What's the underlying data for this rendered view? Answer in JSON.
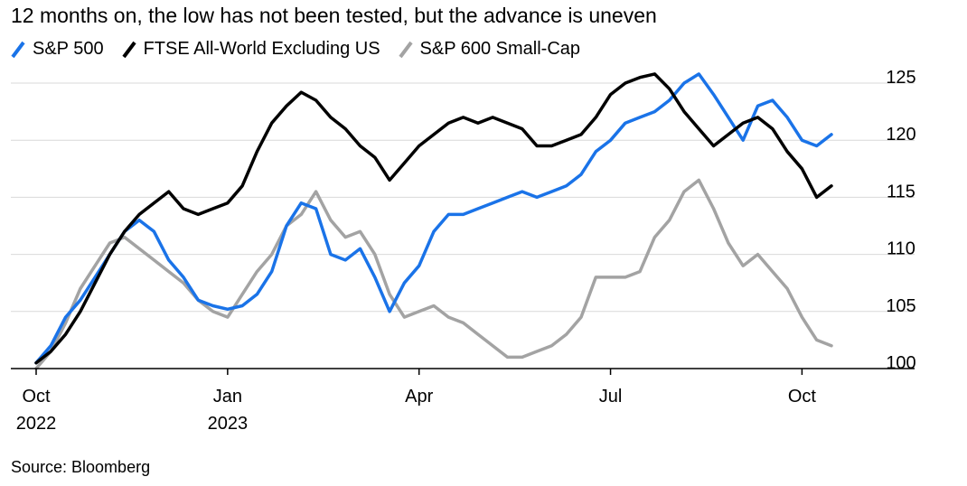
{
  "title": "12 months on, the low has not been tested, but the advance is uneven",
  "source": "Source: Bloomberg",
  "colors": {
    "sp500": "#1a73e8",
    "ftse": "#000000",
    "sp600": "#a3a3a3",
    "grid": "#d9d9d9",
    "axis": "#000000"
  },
  "chart_data": {
    "type": "line",
    "title": "12 months on, the low has not been tested, but the advance is uneven",
    "xlabel": "",
    "ylabel": "",
    "ylim": [
      100,
      125
    ],
    "yticks": [
      100,
      105,
      110,
      115,
      120,
      125
    ],
    "ytick_labels": [
      "100",
      "105",
      "110",
      "115",
      "120",
      "125"
    ],
    "grid": true,
    "y_axis_position": "right",
    "legend_position": "top-left",
    "x_domain": [
      0,
      54
    ],
    "xticks": [
      {
        "x": 0,
        "label": "Oct",
        "sublabel": "2022"
      },
      {
        "x": 13,
        "label": "Jan",
        "sublabel": "2023"
      },
      {
        "x": 26,
        "label": "Apr",
        "sublabel": ""
      },
      {
        "x": 39,
        "label": "Jul",
        "sublabel": ""
      },
      {
        "x": 52,
        "label": "Oct",
        "sublabel": ""
      }
    ],
    "x_unit": "weeks since start of Oct 2022",
    "series": [
      {
        "key": "sp500",
        "name": "S&P 500",
        "x": [
          0,
          1,
          2,
          3,
          4,
          5,
          6,
          7,
          8,
          9,
          10,
          11,
          12,
          13,
          14,
          15,
          16,
          17,
          18,
          19,
          20,
          21,
          22,
          23,
          24,
          25,
          26,
          27,
          28,
          29,
          30,
          31,
          32,
          33,
          34,
          35,
          36,
          37,
          38,
          39,
          40,
          41,
          42,
          43,
          44,
          45,
          46,
          47,
          48,
          49,
          50,
          51,
          52,
          53,
          54
        ],
        "values": [
          100.5,
          102,
          104.5,
          106,
          108,
          110,
          112,
          113,
          112,
          109.5,
          108,
          106,
          105.5,
          105.2,
          105.5,
          106.5,
          108.5,
          112.5,
          114.5,
          114,
          110,
          109.5,
          110.5,
          108,
          105,
          107.5,
          109,
          112,
          113.5,
          113.5,
          114,
          114.5,
          115,
          115.5,
          115,
          115.5,
          116,
          117,
          119,
          120,
          121.5,
          122,
          122.5,
          123.5,
          125,
          125.8,
          124,
          122,
          120,
          123,
          123.5,
          122,
          120,
          119.5,
          120.5
        ]
      },
      {
        "key": "ftse",
        "name": "FTSE All-World Excluding US",
        "x": [
          0,
          1,
          2,
          3,
          4,
          5,
          6,
          7,
          8,
          9,
          10,
          11,
          12,
          13,
          14,
          15,
          16,
          17,
          18,
          19,
          20,
          21,
          22,
          23,
          24,
          25,
          26,
          27,
          28,
          29,
          30,
          31,
          32,
          33,
          34,
          35,
          36,
          37,
          38,
          39,
          40,
          41,
          42,
          43,
          44,
          45,
          46,
          47,
          48,
          49,
          50,
          51,
          52,
          53,
          54
        ],
        "values": [
          100.5,
          101.5,
          103,
          105,
          107.5,
          110,
          112,
          113.5,
          114.5,
          115.5,
          114,
          113.5,
          114,
          114.5,
          116,
          119,
          121.5,
          123,
          124.2,
          123.5,
          122,
          121,
          119.5,
          118.5,
          116.5,
          118,
          119.5,
          120.5,
          121.5,
          122,
          121.5,
          122,
          121.5,
          121,
          119.5,
          119.5,
          120,
          120.5,
          122,
          124,
          125,
          125.5,
          125.8,
          124.5,
          122.5,
          121,
          119.5,
          120.5,
          121.5,
          122,
          121,
          119,
          117.5,
          115,
          116
        ]
      },
      {
        "key": "sp600",
        "name": "S&P 600 Small-Cap",
        "x": [
          0,
          1,
          2,
          3,
          4,
          5,
          6,
          7,
          8,
          9,
          10,
          11,
          12,
          13,
          14,
          15,
          16,
          17,
          18,
          19,
          20,
          21,
          22,
          23,
          24,
          25,
          26,
          27,
          28,
          29,
          30,
          31,
          32,
          33,
          34,
          35,
          36,
          37,
          38,
          39,
          40,
          41,
          42,
          43,
          44,
          45,
          46,
          47,
          48,
          49,
          50,
          51,
          52,
          53,
          54
        ],
        "values": [
          100,
          101.5,
          104,
          107,
          109,
          111,
          111.5,
          110.5,
          109.5,
          108.5,
          107.5,
          106,
          105,
          104.5,
          106.5,
          108.5,
          110,
          112.5,
          113.5,
          115.5,
          113,
          111.5,
          112,
          110,
          106.5,
          104.5,
          105,
          105.5,
          104.5,
          104,
          103,
          102,
          101,
          101,
          101.5,
          102,
          103,
          104.5,
          108,
          108,
          108,
          108.5,
          111.5,
          113,
          115.5,
          116.5,
          114,
          111,
          109,
          110,
          108.5,
          107,
          104.5,
          102.5,
          102
        ]
      }
    ]
  }
}
